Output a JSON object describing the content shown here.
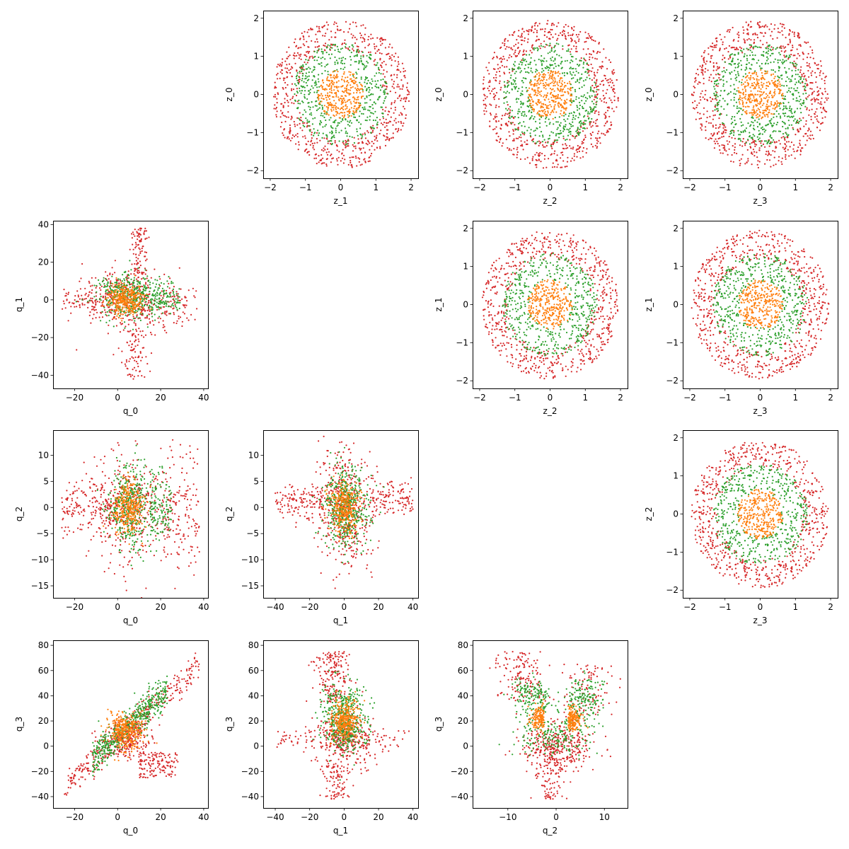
{
  "figure": {
    "colors": {
      "red": "#d62728",
      "green": "#2ca02c",
      "orange": "#ff7f0e"
    }
  },
  "chart_data": [
    {
      "id": "z1-z0",
      "type": "scatter",
      "pattern": "rings",
      "row": 0,
      "col": 1,
      "xlabel": "z_1",
      "ylabel": "z_0",
      "xlim": [
        -2.2,
        2.2
      ],
      "ylim": [
        -2.2,
        2.2
      ],
      "xticks": [
        -2,
        -1,
        0,
        1,
        2
      ],
      "yticks": [
        -2,
        -1,
        0,
        1,
        2
      ],
      "series": [
        {
          "color": "#d62728",
          "shape": "annulus",
          "r_inner": 1.2,
          "r_outer": 1.95,
          "count": 700
        },
        {
          "color": "#2ca02c",
          "shape": "annulus",
          "r_inner": 0.6,
          "r_outer": 1.35,
          "count": 500
        },
        {
          "color": "#ff7f0e",
          "shape": "disk",
          "r_inner": 0.0,
          "r_outer": 0.65,
          "count": 320
        }
      ]
    },
    {
      "id": "z2-z0",
      "type": "scatter",
      "pattern": "rings",
      "row": 0,
      "col": 2,
      "xlabel": "z_2",
      "ylabel": "z_0",
      "xlim": [
        -2.2,
        2.2
      ],
      "ylim": [
        -2.2,
        2.2
      ],
      "xticks": [
        -2,
        -1,
        0,
        1,
        2
      ],
      "yticks": [
        -2,
        -1,
        0,
        1,
        2
      ],
      "series": [
        {
          "color": "#d62728",
          "shape": "annulus",
          "r_inner": 1.2,
          "r_outer": 1.95,
          "count": 700
        },
        {
          "color": "#2ca02c",
          "shape": "annulus",
          "r_inner": 0.6,
          "r_outer": 1.35,
          "count": 500
        },
        {
          "color": "#ff7f0e",
          "shape": "disk",
          "r_inner": 0.0,
          "r_outer": 0.65,
          "count": 320
        }
      ]
    },
    {
      "id": "z3-z0",
      "type": "scatter",
      "pattern": "rings",
      "row": 0,
      "col": 3,
      "xlabel": "z_3",
      "ylabel": "z_0",
      "xlim": [
        -2.2,
        2.2
      ],
      "ylim": [
        -2.2,
        2.2
      ],
      "xticks": [
        -2,
        -1,
        0,
        1,
        2
      ],
      "yticks": [
        -2,
        -1,
        0,
        1,
        2
      ],
      "series": [
        {
          "color": "#d62728",
          "shape": "annulus",
          "r_inner": 1.2,
          "r_outer": 1.95,
          "count": 700
        },
        {
          "color": "#2ca02c",
          "shape": "annulus",
          "r_inner": 0.6,
          "r_outer": 1.35,
          "count": 500
        },
        {
          "color": "#ff7f0e",
          "shape": "disk",
          "r_inner": 0.0,
          "r_outer": 0.65,
          "count": 320
        }
      ]
    },
    {
      "id": "q0-q1",
      "type": "scatter",
      "pattern": "q0q1",
      "row": 1,
      "col": 0,
      "xlabel": "q_0",
      "ylabel": "q_1",
      "xlim": [
        -30,
        42
      ],
      "ylim": [
        -47,
        42
      ],
      "xticks": [
        -20,
        0,
        20,
        40
      ],
      "yticks": [
        -40,
        -20,
        0,
        20,
        40
      ],
      "series": [
        {
          "color": "#d62728",
          "count": 700
        },
        {
          "color": "#2ca02c",
          "count": 500
        },
        {
          "color": "#ff7f0e",
          "count": 320
        }
      ]
    },
    {
      "id": "z2-z1",
      "type": "scatter",
      "pattern": "rings",
      "row": 1,
      "col": 2,
      "xlabel": "z_2",
      "ylabel": "z_1",
      "xlim": [
        -2.2,
        2.2
      ],
      "ylim": [
        -2.2,
        2.2
      ],
      "xticks": [
        -2,
        -1,
        0,
        1,
        2
      ],
      "yticks": [
        -2,
        -1,
        0,
        1,
        2
      ],
      "series": [
        {
          "color": "#d62728",
          "shape": "annulus",
          "r_inner": 1.2,
          "r_outer": 1.95,
          "count": 700
        },
        {
          "color": "#2ca02c",
          "shape": "annulus",
          "r_inner": 0.6,
          "r_outer": 1.35,
          "count": 500
        },
        {
          "color": "#ff7f0e",
          "shape": "disk",
          "r_inner": 0.0,
          "r_outer": 0.65,
          "count": 320
        }
      ]
    },
    {
      "id": "z3-z1",
      "type": "scatter",
      "pattern": "rings",
      "row": 1,
      "col": 3,
      "xlabel": "z_3",
      "ylabel": "z_1",
      "xlim": [
        -2.2,
        2.2
      ],
      "ylim": [
        -2.2,
        2.2
      ],
      "xticks": [
        -2,
        -1,
        0,
        1,
        2
      ],
      "yticks": [
        -2,
        -1,
        0,
        1,
        2
      ],
      "series": [
        {
          "color": "#d62728",
          "shape": "annulus",
          "r_inner": 1.2,
          "r_outer": 1.95,
          "count": 700
        },
        {
          "color": "#2ca02c",
          "shape": "annulus",
          "r_inner": 0.6,
          "r_outer": 1.35,
          "count": 500
        },
        {
          "color": "#ff7f0e",
          "shape": "disk",
          "r_inner": 0.0,
          "r_outer": 0.65,
          "count": 320
        }
      ]
    },
    {
      "id": "q0-q2",
      "type": "scatter",
      "pattern": "q0q2",
      "row": 2,
      "col": 0,
      "xlabel": "q_0",
      "ylabel": "q_2",
      "xlim": [
        -30,
        42
      ],
      "ylim": [
        -17.3,
        14.8
      ],
      "xticks": [
        -20,
        0,
        20,
        40
      ],
      "yticks": [
        -15,
        -10,
        -5,
        0,
        5,
        10
      ],
      "series": [
        {
          "color": "#d62728",
          "count": 700
        },
        {
          "color": "#2ca02c",
          "count": 500
        },
        {
          "color": "#ff7f0e",
          "count": 320
        }
      ]
    },
    {
      "id": "q1-q2",
      "type": "scatter",
      "pattern": "q1q2",
      "row": 2,
      "col": 1,
      "xlabel": "q_1",
      "ylabel": "q_2",
      "xlim": [
        -47,
        43
      ],
      "ylim": [
        -17.3,
        14.8
      ],
      "xticks": [
        -40,
        -20,
        0,
        20,
        40
      ],
      "yticks": [
        -15,
        -10,
        -5,
        0,
        5,
        10
      ],
      "series": [
        {
          "color": "#d62728",
          "count": 700
        },
        {
          "color": "#2ca02c",
          "count": 500
        },
        {
          "color": "#ff7f0e",
          "count": 320
        }
      ]
    },
    {
      "id": "z3-z2",
      "type": "scatter",
      "pattern": "rings",
      "row": 2,
      "col": 3,
      "xlabel": "z_3",
      "ylabel": "z_2",
      "xlim": [
        -2.2,
        2.2
      ],
      "ylim": [
        -2.2,
        2.2
      ],
      "xticks": [
        -2,
        -1,
        0,
        1,
        2
      ],
      "yticks": [
        -2,
        -1,
        0,
        1,
        2
      ],
      "series": [
        {
          "color": "#d62728",
          "shape": "annulus",
          "r_inner": 1.2,
          "r_outer": 1.95,
          "count": 700
        },
        {
          "color": "#2ca02c",
          "shape": "annulus",
          "r_inner": 0.6,
          "r_outer": 1.35,
          "count": 500
        },
        {
          "color": "#ff7f0e",
          "shape": "disk",
          "r_inner": 0.0,
          "r_outer": 0.65,
          "count": 320
        }
      ]
    },
    {
      "id": "q0-q3",
      "type": "scatter",
      "pattern": "q0q3",
      "row": 3,
      "col": 0,
      "xlabel": "q_0",
      "ylabel": "q_3",
      "xlim": [
        -30,
        42
      ],
      "ylim": [
        -49,
        84
      ],
      "xticks": [
        -20,
        0,
        20,
        40
      ],
      "yticks": [
        -40,
        -20,
        0,
        20,
        40,
        60,
        80
      ],
      "series": [
        {
          "color": "#d62728",
          "count": 700
        },
        {
          "color": "#2ca02c",
          "count": 500
        },
        {
          "color": "#ff7f0e",
          "count": 320
        }
      ]
    },
    {
      "id": "q1-q3",
      "type": "scatter",
      "pattern": "q1q3",
      "row": 3,
      "col": 1,
      "xlabel": "q_1",
      "ylabel": "q_3",
      "xlim": [
        -47,
        43
      ],
      "ylim": [
        -49,
        84
      ],
      "xticks": [
        -40,
        -20,
        0,
        20,
        40
      ],
      "yticks": [
        -40,
        -20,
        0,
        20,
        40,
        60,
        80
      ],
      "series": [
        {
          "color": "#d62728",
          "count": 700
        },
        {
          "color": "#2ca02c",
          "count": 500
        },
        {
          "color": "#ff7f0e",
          "count": 320
        }
      ]
    },
    {
      "id": "q2-q3",
      "type": "scatter",
      "pattern": "q2q3",
      "row": 3,
      "col": 2,
      "xlabel": "q_2",
      "ylabel": "q_3",
      "xlim": [
        -17.3,
        14.8
      ],
      "ylim": [
        -49,
        84
      ],
      "xticks": [
        -10,
        0,
        10
      ],
      "yticks": [
        -40,
        -20,
        0,
        20,
        40,
        60,
        80
      ],
      "series": [
        {
          "color": "#d62728",
          "count": 700
        },
        {
          "color": "#2ca02c",
          "count": 500
        },
        {
          "color": "#ff7f0e",
          "count": 320
        }
      ]
    }
  ]
}
